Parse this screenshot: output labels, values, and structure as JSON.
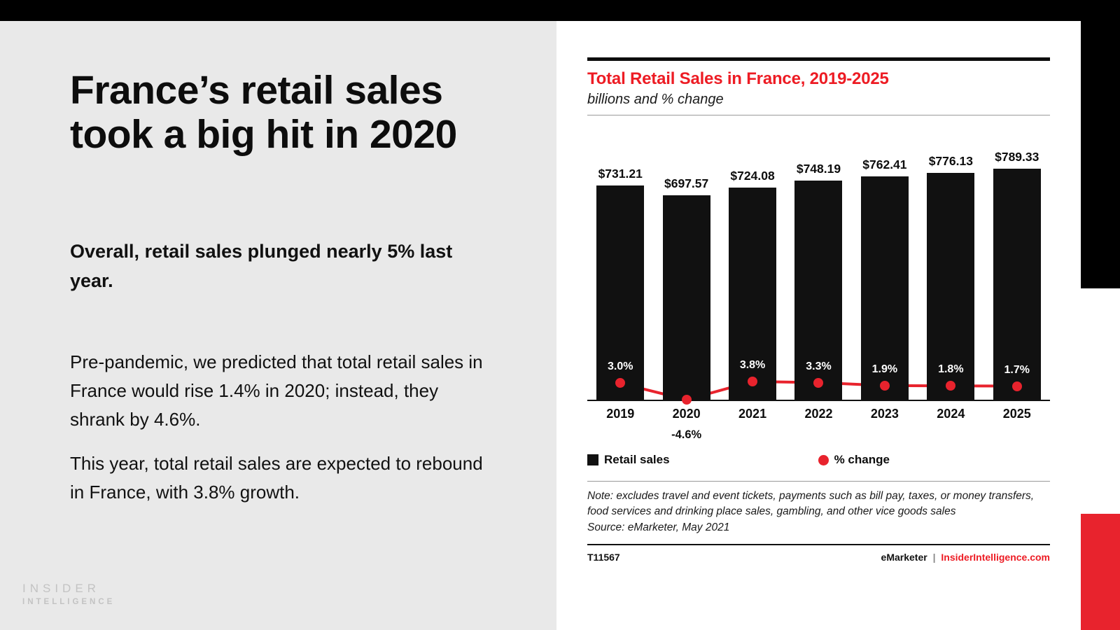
{
  "slide": {
    "headline": "France’s retail sales took a big hit in 2020",
    "subhead": "Overall, retail sales plunged nearly 5% last year.",
    "para1": "Pre-pandemic, we predicted that total retail sales in France would rise 1.4% in 2020; instead, they shrank by 4.6%.",
    "para2": "This year, total retail sales are expected to rebound in France, with 3.8% growth.",
    "logo_line1": "INSIDER",
    "logo_line2": "INTELLIGENCE"
  },
  "chart": {
    "title": "Total Retail Sales in France, 2019-2025",
    "subtitle": "billions and % change",
    "note": "Note: excludes travel and event tickets, payments such as bill pay, taxes, or money transfers, food services and drinking place sales, gambling, and other vice goods sales",
    "source": "Source: eMarketer, May 2021",
    "chart_id": "T11567",
    "brand": "eMarketer",
    "brand_divider": "|",
    "brand_site": "InsiderIntelligence.com"
  },
  "chart_data": {
    "type": "bar+line",
    "title": "Total Retail Sales in France, 2019-2025",
    "subtitle": "billions and % change",
    "categories": [
      "2019",
      "2020",
      "2021",
      "2022",
      "2023",
      "2024",
      "2025"
    ],
    "series": [
      {
        "name": "Retail sales",
        "unit": "billions USD",
        "values": [
          731.21,
          697.57,
          724.08,
          748.19,
          762.41,
          776.13,
          789.33
        ],
        "labels": [
          "$731.21",
          "$697.57",
          "$724.08",
          "$748.19",
          "$762.41",
          "$776.13",
          "$789.33"
        ]
      },
      {
        "name": "% change",
        "unit": "percent",
        "values": [
          3.0,
          -4.6,
          3.8,
          3.3,
          1.9,
          1.8,
          1.7
        ],
        "labels": [
          "3.0%",
          "-4.6%",
          "3.8%",
          "3.3%",
          "1.9%",
          "1.8%",
          "1.7%"
        ]
      }
    ],
    "colors": {
      "bar": "#111111",
      "line": "#e8232d",
      "title_red": "#ed1c24"
    },
    "legend_position": "bottom",
    "grid": false,
    "ylim_bars": [
      0,
      789.33
    ]
  }
}
